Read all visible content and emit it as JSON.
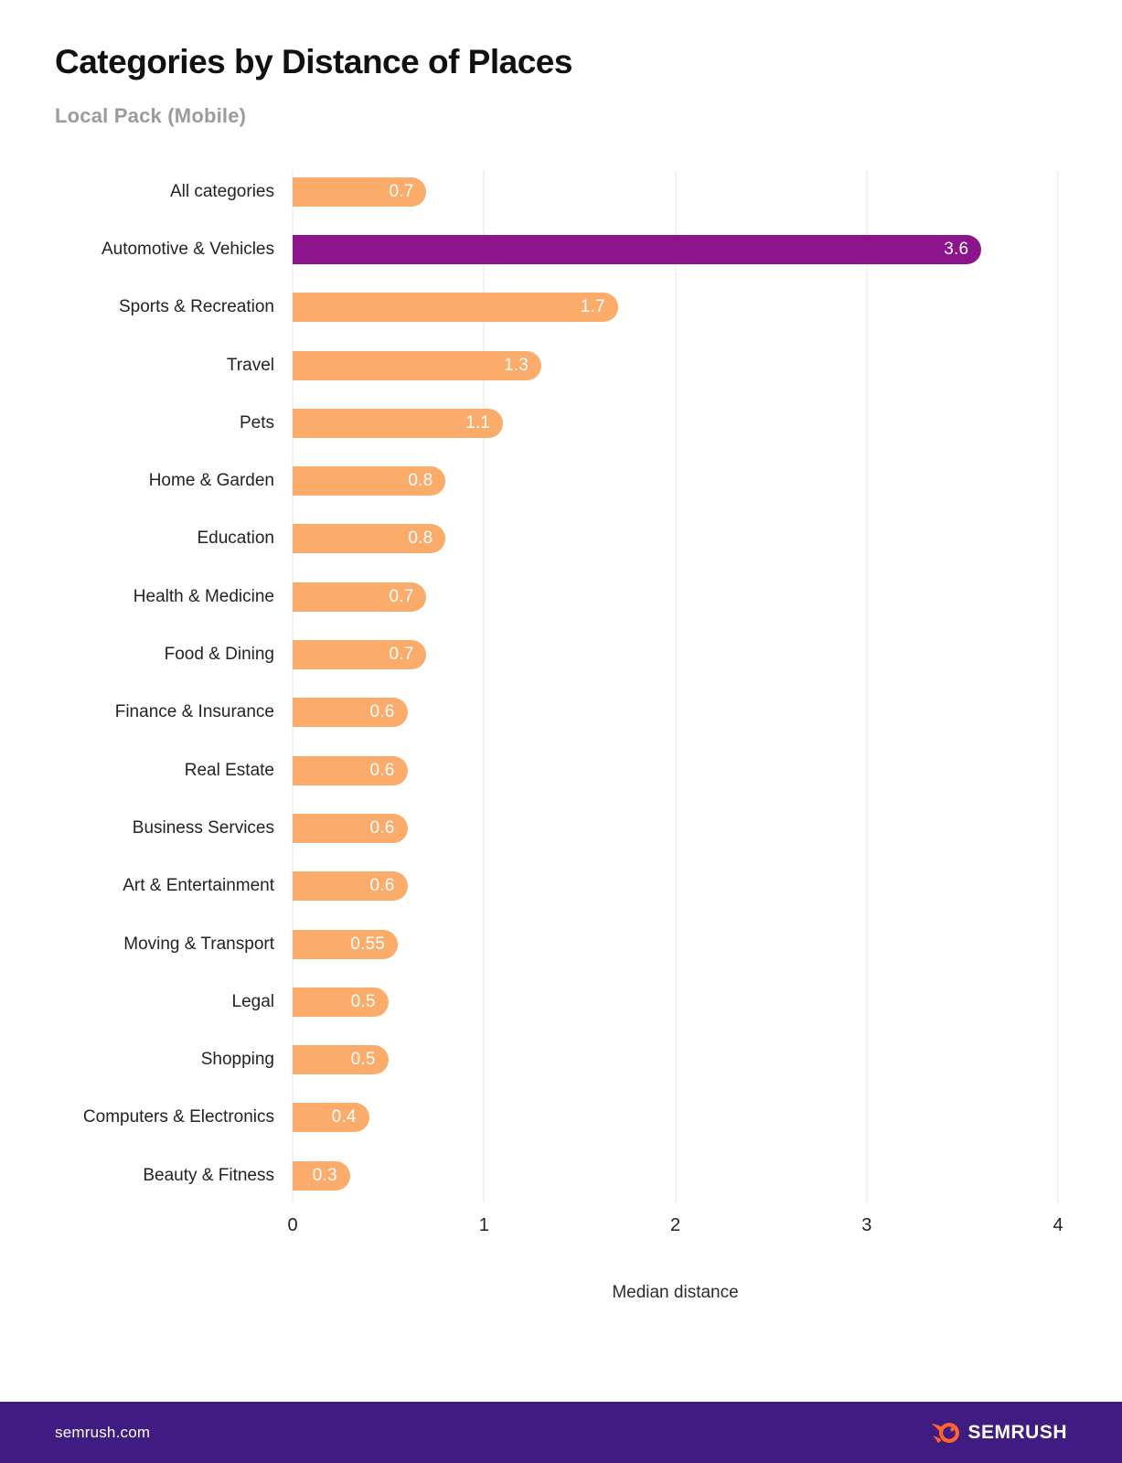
{
  "page": {
    "title": "Categories by Distance of Places",
    "subtitle": "Local Pack (Mobile)"
  },
  "chart_data": {
    "type": "bar",
    "orientation": "horizontal",
    "title": "Categories by Distance of Places",
    "subtitle": "Local Pack (Mobile)",
    "xlabel": "Median distance",
    "ylabel": "",
    "xlim": [
      0,
      4
    ],
    "x_ticks": [
      "0",
      "1",
      "2",
      "3",
      "4"
    ],
    "grid": true,
    "legend": false,
    "categories": [
      "All categories",
      "Automotive & Vehicles",
      "Sports & Recreation",
      "Travel",
      "Pets",
      "Home & Garden",
      "Education",
      "Health & Medicine",
      "Food & Dining",
      "Finance & Insurance",
      "Real Estate",
      "Business Services",
      "Art & Entertainment",
      "Moving & Transport",
      "Legal",
      "Shopping",
      "Computers & Electronics",
      "Beauty & Fitness"
    ],
    "values": [
      0.7,
      3.6,
      1.7,
      1.3,
      1.1,
      0.8,
      0.8,
      0.7,
      0.7,
      0.6,
      0.6,
      0.6,
      0.6,
      0.55,
      0.5,
      0.5,
      0.4,
      0.3
    ],
    "value_labels": [
      "0.7",
      "3.6",
      "1.7",
      "1.3",
      "1.1",
      "0.8",
      "0.8",
      "0.7",
      "0.7",
      "0.6",
      "0.6",
      "0.6",
      "0.6",
      "0.55",
      "0.5",
      "0.5",
      "0.4",
      "0.3"
    ],
    "highlight_index": 1,
    "colors": {
      "bar": "#FBAC6B",
      "highlight": "#8C148C",
      "value_text": "#FFFFFF",
      "gridline": "#E7E7E7"
    }
  },
  "footer": {
    "site": "semrush.com",
    "brand": "SEMRUSH",
    "logo_icon": "semrush-flame-icon",
    "background": "#3F1B82",
    "flame_color": "#FF642D"
  }
}
